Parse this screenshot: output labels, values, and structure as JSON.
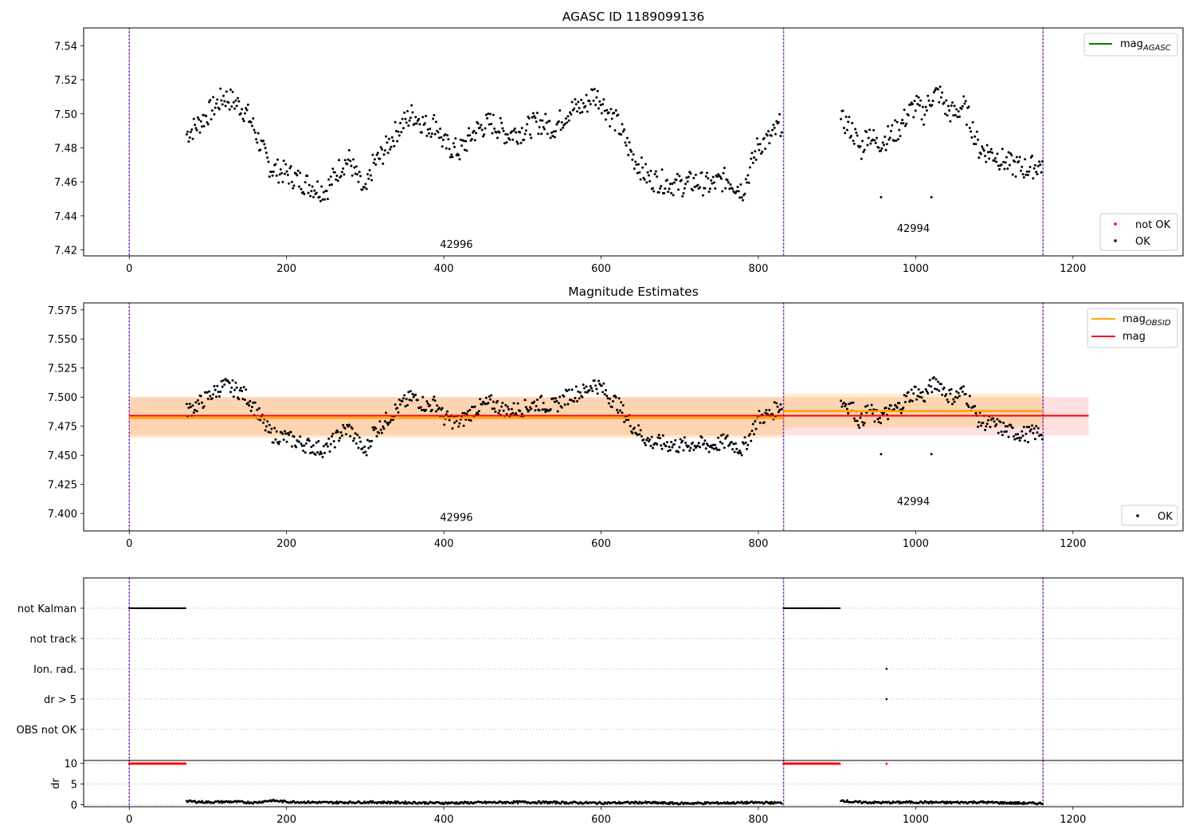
{
  "chart_data": [
    {
      "type": "scatter",
      "title": "AGASC ID 1189099136",
      "xlabel": "",
      "ylabel": "",
      "xlim": [
        -58,
        1340
      ],
      "ylim": [
        7.4165,
        7.5505
      ],
      "xticks": [
        "0",
        "200",
        "400",
        "600",
        "800",
        "1000",
        "1200"
      ],
      "yticks": [
        "7.42",
        "7.44",
        "7.46",
        "7.48",
        "7.50",
        "7.52",
        "7.54"
      ],
      "vlines": [
        0,
        832,
        1162
      ],
      "annotations": [
        {
          "text": "42996",
          "x": 416,
          "y": 7.4213
        },
        {
          "text": "42994",
          "x": 997,
          "y": 7.4306
        }
      ],
      "legend_upper": [
        {
          "name": "mag",
          "sub": "AGASC",
          "color": "#008000"
        }
      ],
      "legend_lower": [
        {
          "name": "not OK",
          "color": "#ff0000"
        },
        {
          "name": "OK",
          "color": "#000000"
        }
      ],
      "series": [
        {
          "name": "OK",
          "x": [
            73,
            90,
            100,
            110,
            120,
            130,
            140,
            150,
            160,
            170,
            180,
            200,
            220,
            240,
            250,
            270,
            280,
            290,
            300,
            310,
            320,
            340,
            360,
            380,
            390,
            400,
            410,
            420,
            440,
            460,
            480,
            500,
            520,
            540,
            560,
            580,
            590,
            600,
            610,
            620,
            640,
            660,
            680,
            700,
            720,
            740,
            760,
            780,
            790,
            800,
            815,
            830,
            910,
            920,
            930,
            940,
            950,
            960,
            970,
            980,
            990,
            1000,
            1010,
            1020,
            1030,
            1040,
            1050,
            1060,
            1070,
            1080,
            1090,
            1100,
            1120,
            1140,
            1160
          ],
          "y": [
            7.488,
            7.495,
            7.5,
            7.505,
            7.51,
            7.508,
            7.505,
            7.5,
            7.49,
            7.478,
            7.468,
            7.465,
            7.46,
            7.456,
            7.455,
            7.47,
            7.473,
            7.462,
            7.452,
            7.47,
            7.475,
            7.49,
            7.5,
            7.492,
            7.495,
            7.482,
            7.48,
            7.478,
            7.49,
            7.495,
            7.488,
            7.49,
            7.495,
            7.492,
            7.502,
            7.505,
            7.512,
            7.508,
            7.5,
            7.495,
            7.475,
            7.462,
            7.46,
            7.458,
            7.46,
            7.458,
            7.462,
            7.455,
            7.468,
            7.482,
            7.485,
            7.495,
            7.495,
            7.49,
            7.478,
            7.49,
            7.482,
            7.485,
            7.488,
            7.492,
            7.5,
            7.505,
            7.5,
            7.51,
            7.512,
            7.502,
            7.5,
            7.505,
            7.495,
            7.48,
            7.478,
            7.476,
            7.47,
            7.468,
            7.47
          ]
        },
        {
          "name": "OK (outliers)",
          "x": [
            956,
            1020
          ],
          "y": [
            7.451,
            7.451
          ]
        }
      ]
    },
    {
      "type": "scatter",
      "title": "Magnitude Estimates",
      "xlabel": "",
      "ylabel": "",
      "xlim": [
        -58,
        1340
      ],
      "ylim": [
        7.385,
        7.581
      ],
      "xticks": [
        "0",
        "200",
        "400",
        "600",
        "800",
        "1000",
        "1200"
      ],
      "yticks": [
        "7.400",
        "7.425",
        "7.450",
        "7.475",
        "7.500",
        "7.525",
        "7.550",
        "7.575"
      ],
      "vlines": [
        0,
        832,
        1162
      ],
      "annotations": [
        {
          "text": "42996",
          "x": 416,
          "y": 7.3934
        },
        {
          "text": "42994",
          "x": 997,
          "y": 7.4074
        }
      ],
      "legend_upper": [
        {
          "name": "mag",
          "sub": "OBSID",
          "color": "#ffa500"
        },
        {
          "name": "mag",
          "sub": "",
          "color": "#ff0000"
        }
      ],
      "legend_lower": [
        {
          "name": "OK",
          "color": "#000000"
        }
      ],
      "mag_obsid": [
        {
          "x0": 0,
          "x1": 832,
          "value": 7.482,
          "low": 7.465,
          "high": 7.5
        },
        {
          "x0": 832,
          "x1": 1162,
          "value": 7.488,
          "low": 7.474,
          "high": 7.503
        }
      ],
      "mag": {
        "x0": 0,
        "x1": 1220,
        "value": 7.484,
        "low": 7.467,
        "high": 7.5
      },
      "series": [
        {
          "name": "OK",
          "x": [
            73,
            90,
            100,
            110,
            120,
            130,
            140,
            150,
            160,
            170,
            180,
            200,
            220,
            240,
            250,
            270,
            280,
            290,
            300,
            310,
            320,
            340,
            360,
            380,
            390,
            400,
            410,
            420,
            440,
            460,
            480,
            500,
            520,
            540,
            560,
            580,
            590,
            600,
            610,
            620,
            640,
            660,
            680,
            700,
            720,
            740,
            760,
            780,
            790,
            800,
            815,
            830,
            910,
            920,
            930,
            940,
            950,
            960,
            970,
            980,
            990,
            1000,
            1010,
            1020,
            1030,
            1040,
            1050,
            1060,
            1070,
            1080,
            1090,
            1100,
            1120,
            1140,
            1160
          ],
          "y": [
            7.488,
            7.495,
            7.5,
            7.505,
            7.51,
            7.508,
            7.505,
            7.5,
            7.49,
            7.478,
            7.468,
            7.465,
            7.46,
            7.456,
            7.455,
            7.47,
            7.473,
            7.462,
            7.452,
            7.47,
            7.475,
            7.49,
            7.5,
            7.492,
            7.495,
            7.482,
            7.48,
            7.478,
            7.49,
            7.495,
            7.488,
            7.49,
            7.495,
            7.492,
            7.502,
            7.505,
            7.512,
            7.508,
            7.5,
            7.495,
            7.475,
            7.462,
            7.46,
            7.458,
            7.46,
            7.458,
            7.462,
            7.455,
            7.468,
            7.482,
            7.485,
            7.495,
            7.495,
            7.49,
            7.478,
            7.49,
            7.482,
            7.485,
            7.488,
            7.492,
            7.5,
            7.505,
            7.5,
            7.51,
            7.512,
            7.502,
            7.5,
            7.505,
            7.495,
            7.48,
            7.478,
            7.476,
            7.47,
            7.468,
            7.47
          ]
        },
        {
          "name": "OK (outliers)",
          "x": [
            956,
            1020
          ],
          "y": [
            7.451,
            7.451
          ]
        }
      ]
    },
    {
      "type": "scatter",
      "title": "",
      "xlabel": "",
      "ylabel": "",
      "xlim": [
        -58,
        1340
      ],
      "categories": [
        "not Kalman",
        "not track",
        "Ion. rad.",
        "dr > 5",
        "OBS not OK"
      ],
      "vlines": [
        0,
        832,
        1162
      ],
      "flags": [
        {
          "category": "not Kalman",
          "ranges": [
            [
              0,
              72
            ],
            [
              832,
              904
            ]
          ]
        },
        {
          "category": "Ion. rad.",
          "x": [
            963
          ]
        },
        {
          "category": "dr > 5",
          "x": [
            963
          ]
        }
      ]
    },
    {
      "type": "line",
      "title": "",
      "xlabel": "",
      "ylabel": "dr",
      "xlim": [
        -58,
        1340
      ],
      "ylim": [
        -0.5,
        10.7
      ],
      "xticks": [
        "0",
        "200",
        "400",
        "600",
        "800",
        "1000",
        "1200"
      ],
      "yticks": [
        "0",
        "5",
        "10"
      ],
      "vlines": [
        0,
        832,
        1162
      ],
      "flagged_at_10": [
        {
          "x0": 0,
          "x1": 72
        },
        {
          "x0": 832,
          "x1": 904
        },
        {
          "x0": 963,
          "x1": 963
        }
      ],
      "series": [
        {
          "name": "dr",
          "x": [
            73,
            100,
            130,
            160,
            180,
            200,
            250,
            300,
            350,
            400,
            450,
            500,
            550,
            600,
            650,
            700,
            750,
            800,
            830,
            905,
            920,
            960,
            1000,
            1040,
            1080,
            1120,
            1160
          ],
          "y": [
            0.8,
            0.6,
            0.7,
            0.5,
            1.0,
            0.7,
            0.5,
            0.6,
            0.5,
            0.4,
            0.5,
            0.6,
            0.5,
            0.4,
            0.5,
            0.3,
            0.4,
            0.5,
            0.4,
            1.1,
            0.6,
            0.5,
            0.6,
            0.5,
            0.6,
            0.4,
            0.3
          ]
        }
      ]
    }
  ]
}
